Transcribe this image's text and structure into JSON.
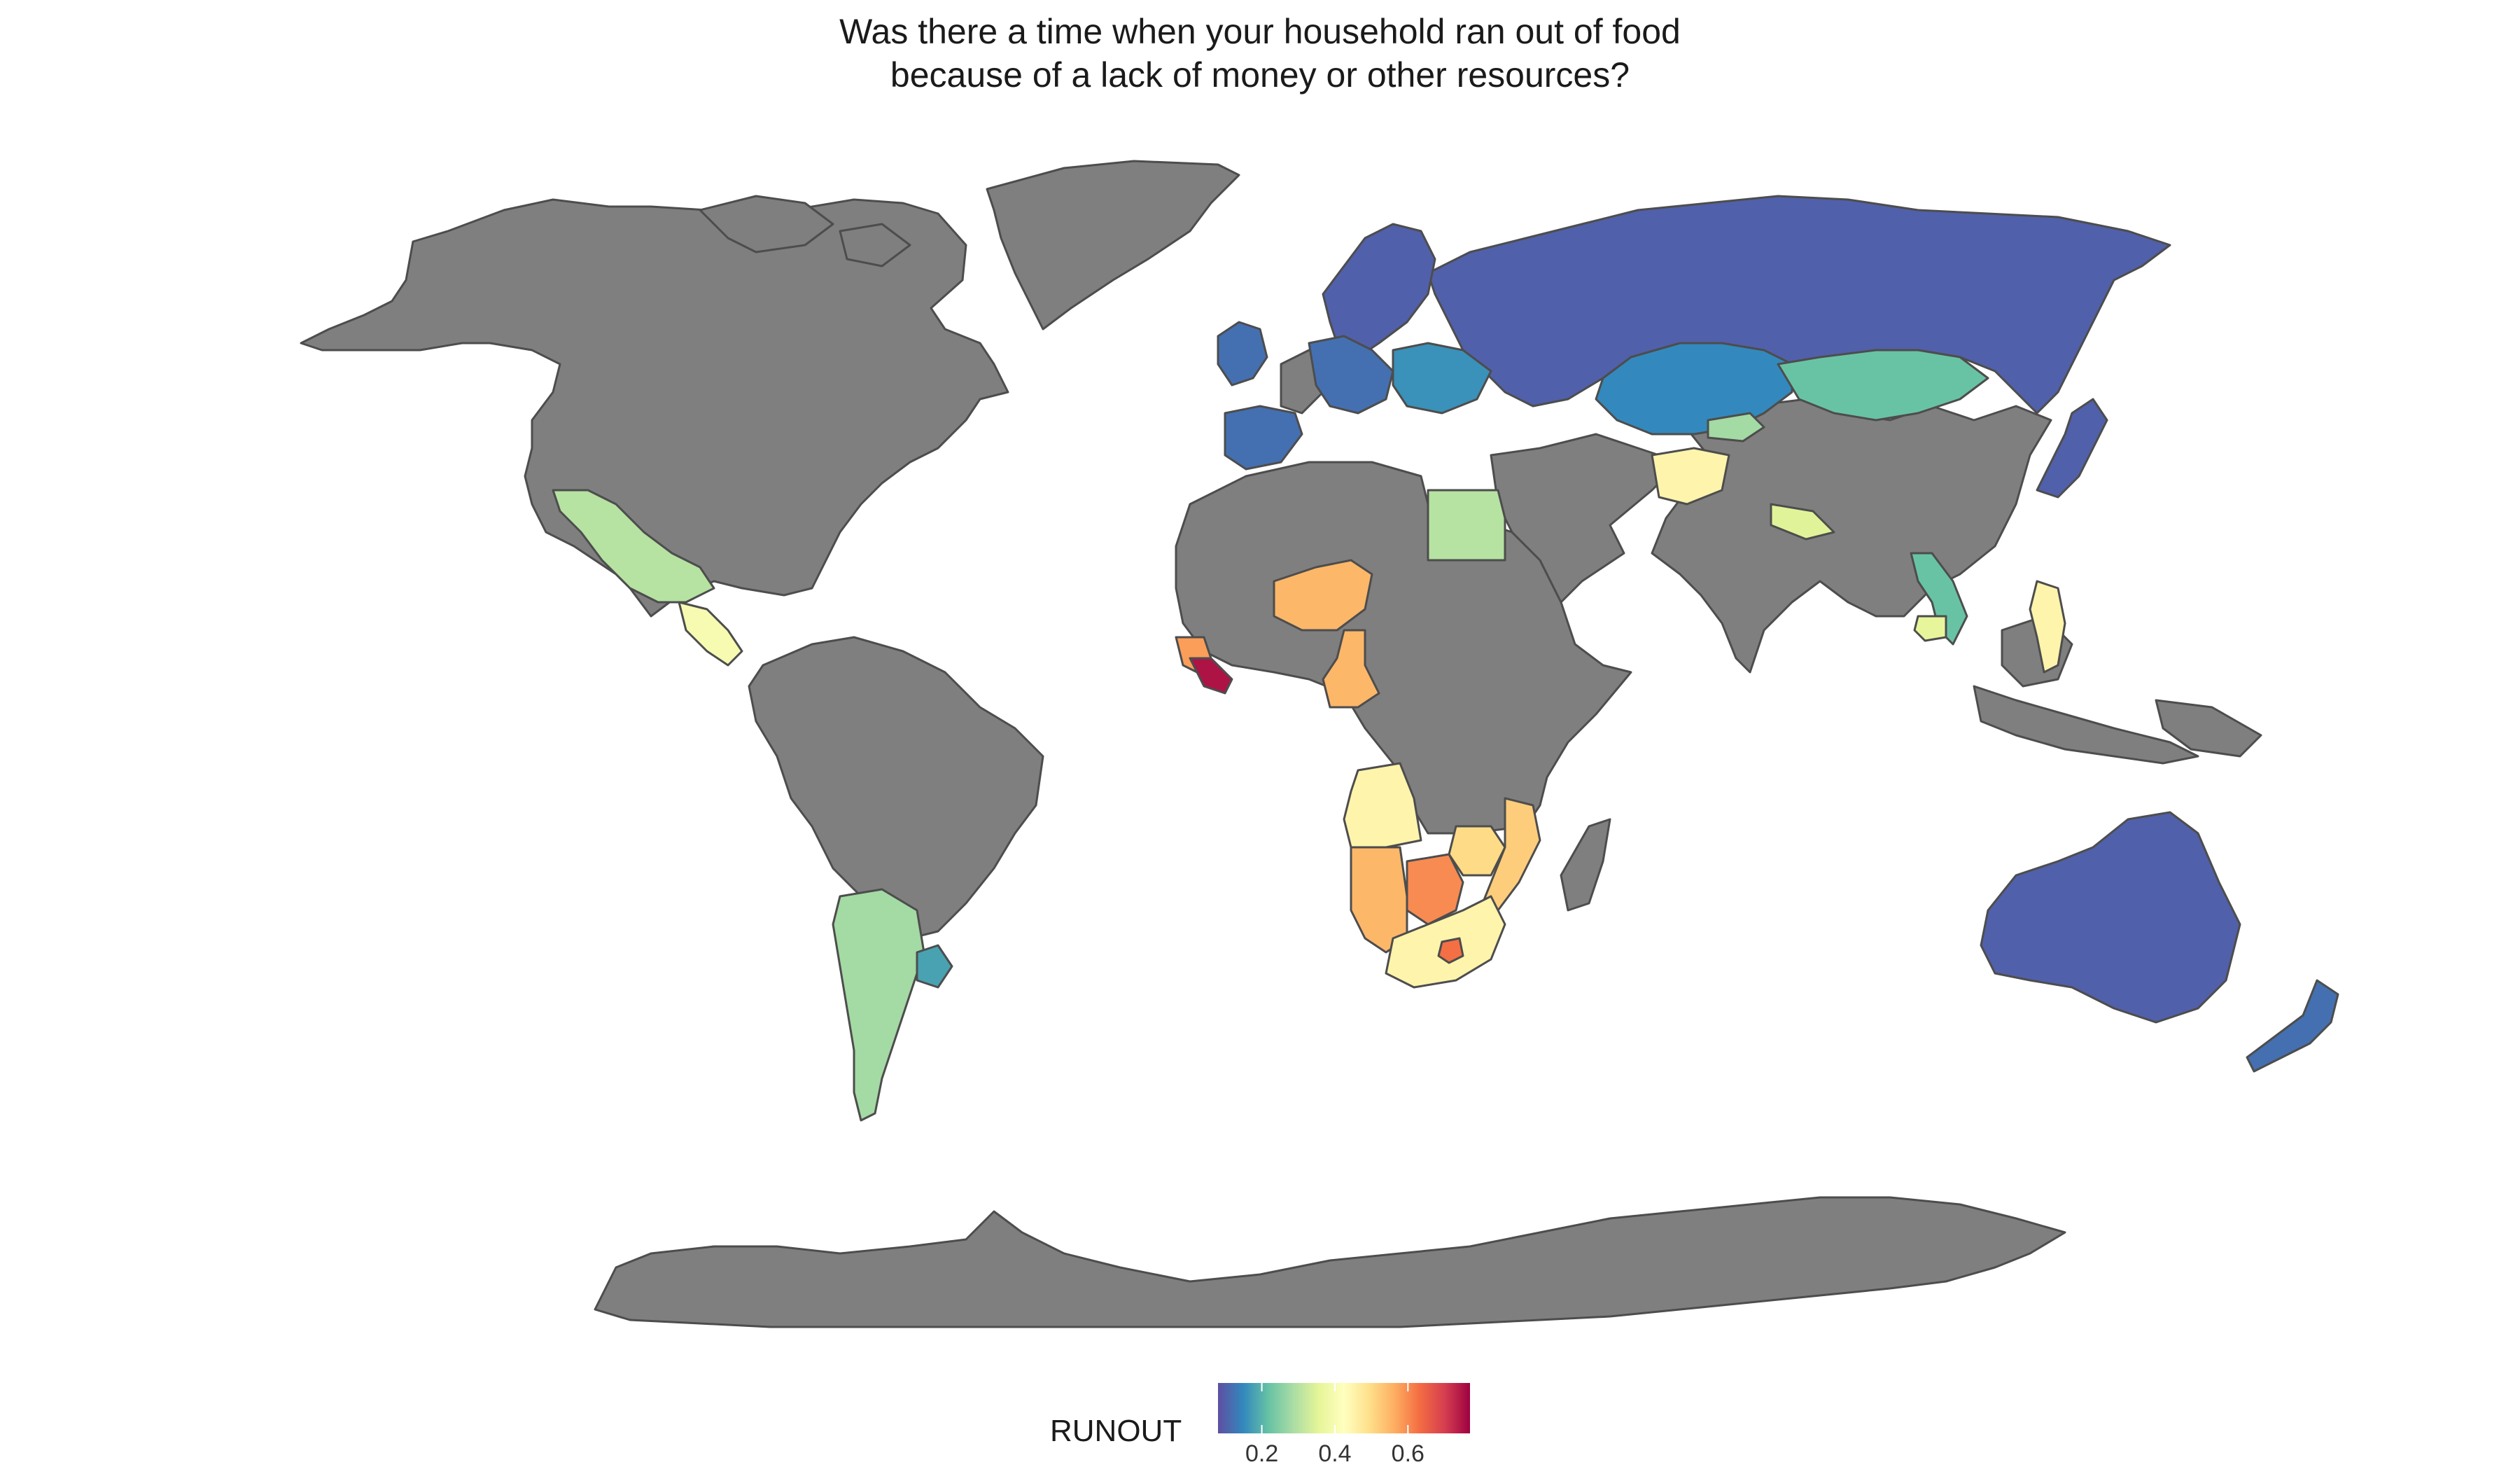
{
  "map": {
    "title_line1": "Was there a time when your household ran out of food",
    "title_line2": "because of a lack of money or other resources?",
    "no_data_color": "#7f7f7f",
    "border_color": "#4d4d4d"
  },
  "legend": {
    "title": "RUNOUT",
    "min": 0.08,
    "max": 0.77,
    "ticks": [
      {
        "label": "0.2",
        "value": 0.2
      },
      {
        "label": "0.4",
        "value": 0.4
      },
      {
        "label": "0.6",
        "value": 0.6
      }
    ],
    "palette": [
      "#5e4fa2",
      "#3288bd",
      "#66c2a5",
      "#abdda4",
      "#e6f598",
      "#ffffbf",
      "#fee08b",
      "#fdae61",
      "#f46d43",
      "#d53e4f",
      "#9e0142"
    ]
  },
  "regions": [
    {
      "name": "Russia",
      "runout": 0.1
    },
    {
      "name": "Kazakhstan",
      "runout": 0.15
    },
    {
      "name": "Mongolia",
      "runout": 0.22
    },
    {
      "name": "Japan",
      "runout": 0.1
    },
    {
      "name": "Australia",
      "runout": 0.1
    },
    {
      "name": "New Zealand",
      "runout": 0.12
    },
    {
      "name": "Scandinavia",
      "runout": 0.1
    },
    {
      "name": "United Kingdom",
      "runout": 0.12
    },
    {
      "name": "Spain",
      "runout": 0.12
    },
    {
      "name": "Central Europe",
      "runout": 0.12
    },
    {
      "name": "Eastern Europe",
      "runout": 0.16
    },
    {
      "name": "Mexico",
      "runout": 0.3
    },
    {
      "name": "Central America",
      "runout": 0.4
    },
    {
      "name": "Argentina",
      "runout": 0.28
    },
    {
      "name": "Uruguay",
      "runout": 0.18
    },
    {
      "name": "Egypt",
      "runout": 0.3
    },
    {
      "name": "Niger",
      "runout": 0.55
    },
    {
      "name": "Cameroon",
      "runout": 0.55
    },
    {
      "name": "Sierra Leone",
      "runout": 0.58
    },
    {
      "name": "Liberia",
      "runout": 0.75
    },
    {
      "name": "Angola",
      "runout": 0.45
    },
    {
      "name": "Namibia",
      "runout": 0.55
    },
    {
      "name": "Botswana",
      "runout": 0.6
    },
    {
      "name": "Zimbabwe",
      "runout": 0.5
    },
    {
      "name": "Mozambique",
      "runout": 0.52
    },
    {
      "name": "South Africa",
      "runout": 0.45
    },
    {
      "name": "Lesotho",
      "runout": 0.63
    },
    {
      "name": "Afghanistan",
      "runout": 0.45
    },
    {
      "name": "Kyrgyzstan",
      "runout": 0.28
    },
    {
      "name": "Nepal",
      "runout": 0.35
    },
    {
      "name": "Vietnam",
      "runout": 0.22
    },
    {
      "name": "Cambodia",
      "runout": 0.36
    },
    {
      "name": "Philippines",
      "runout": 0.45
    }
  ]
}
